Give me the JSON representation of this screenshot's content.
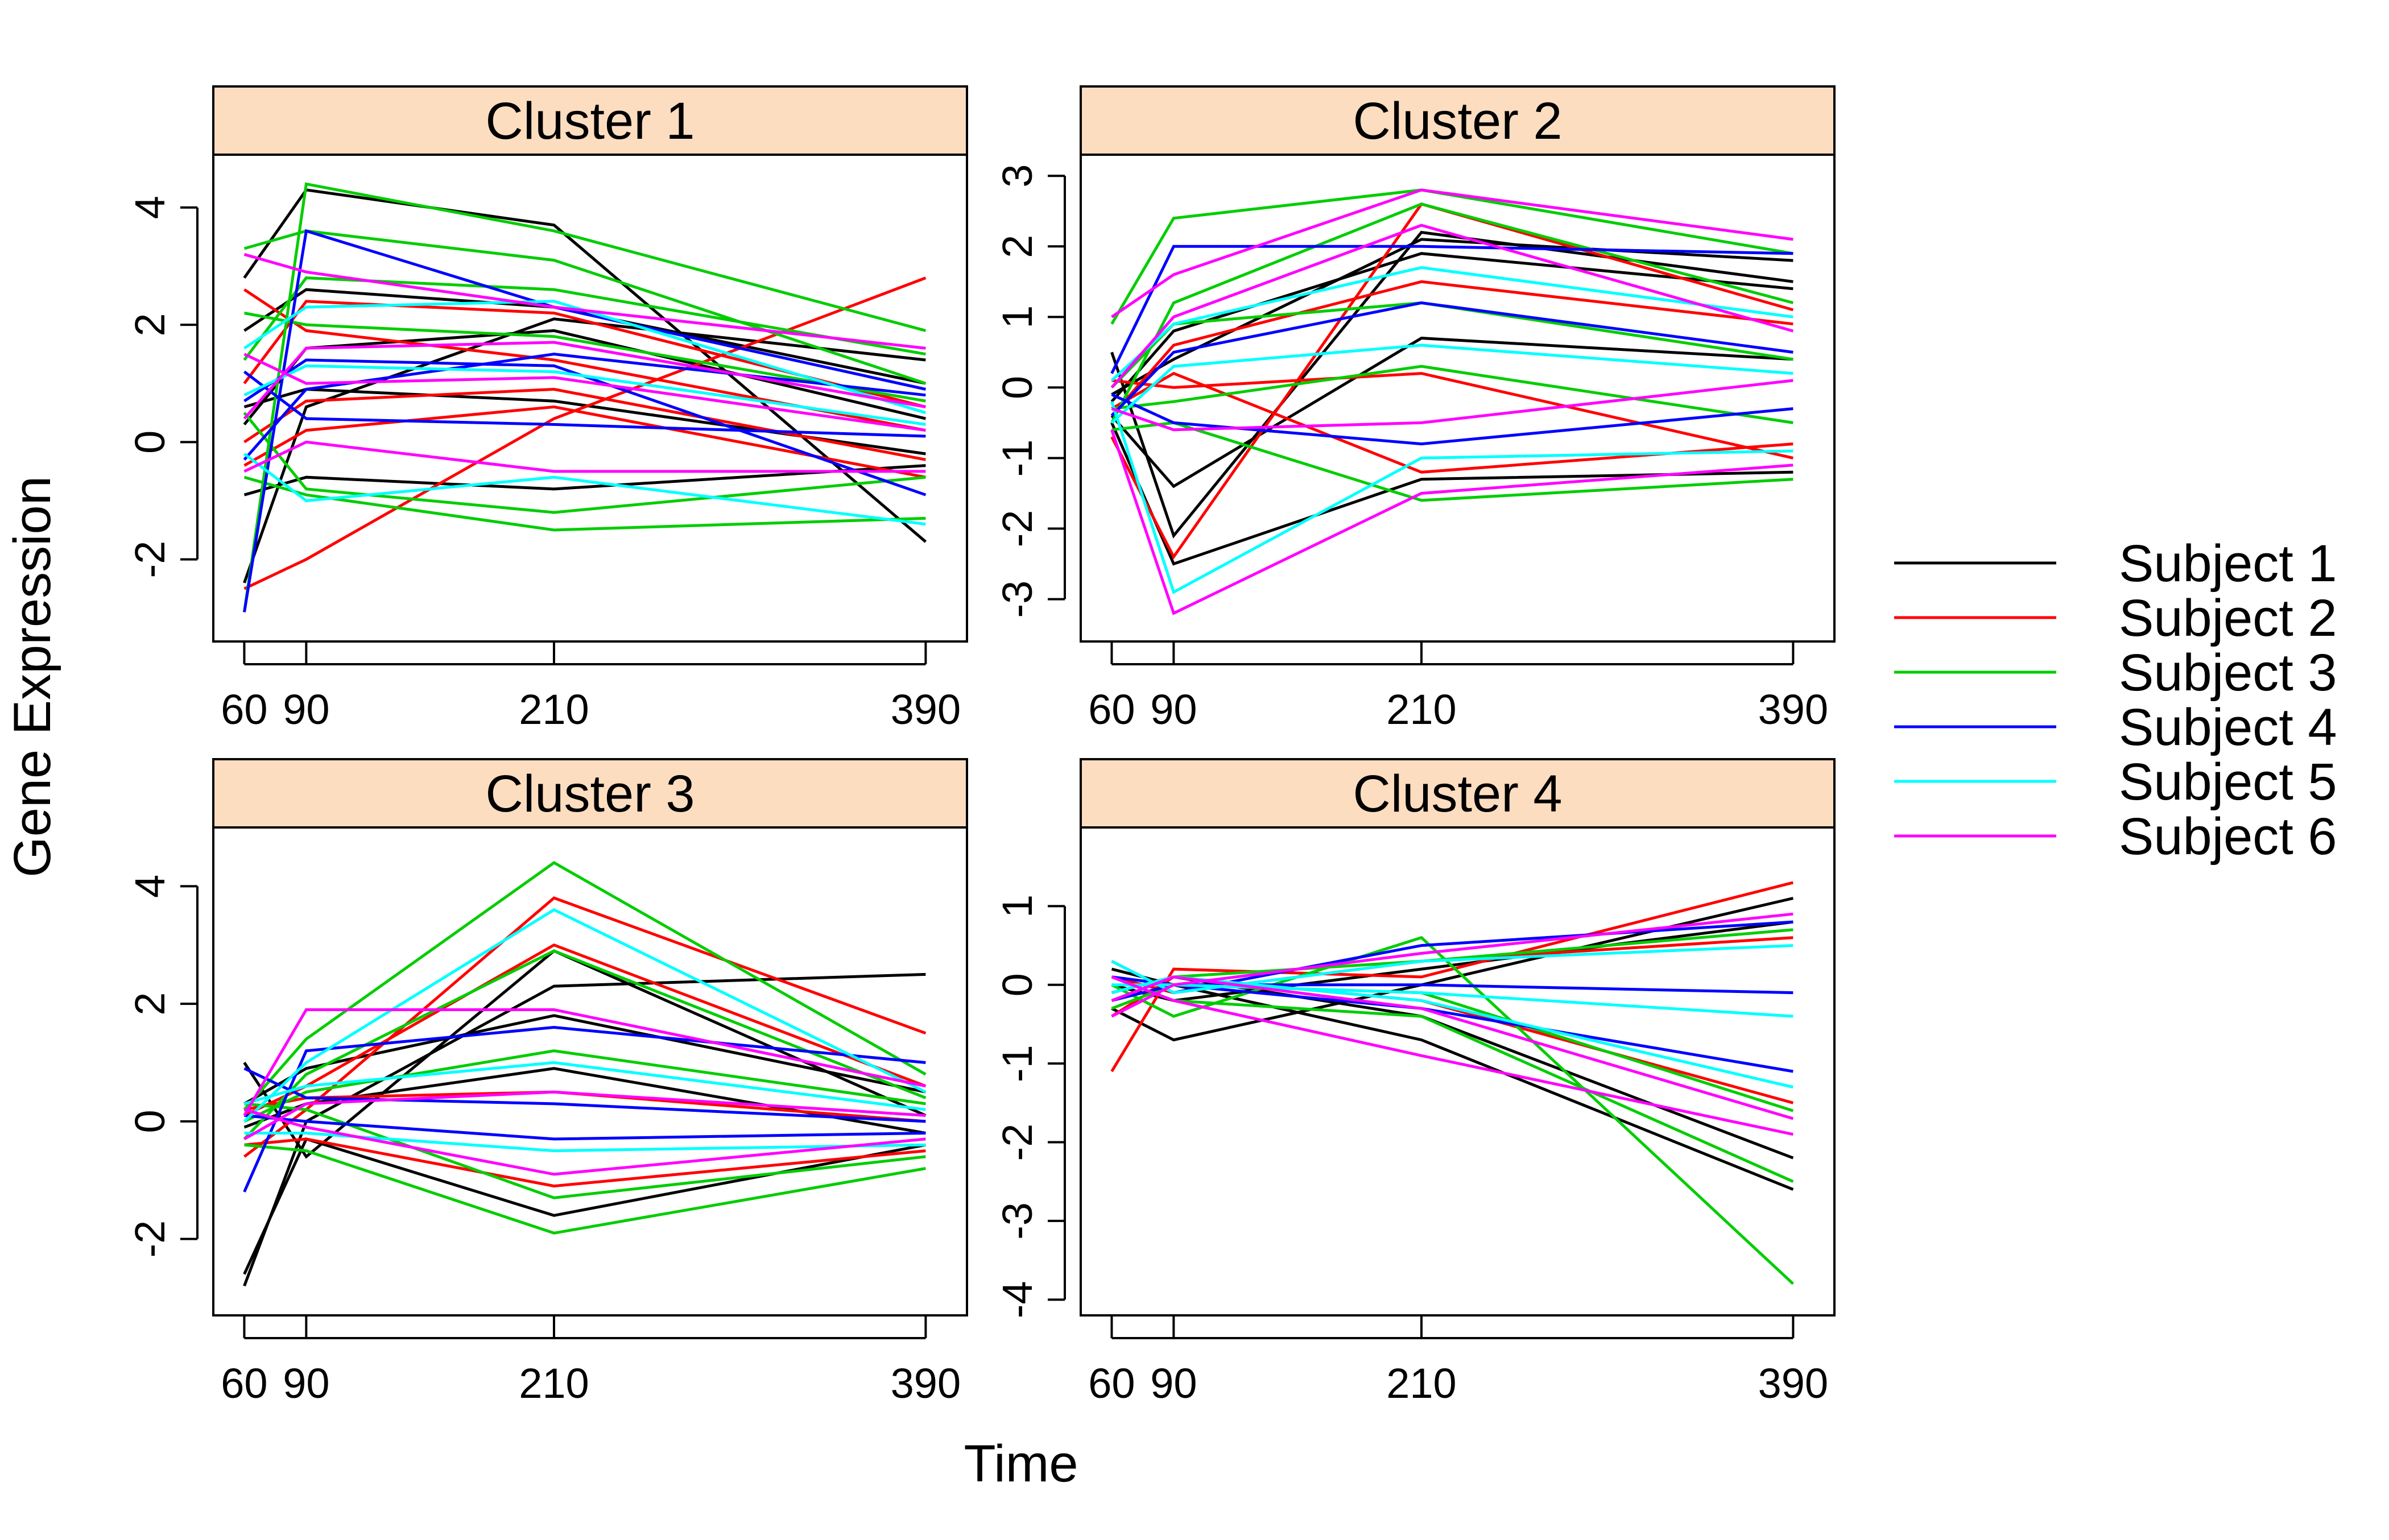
{
  "chart_data": {
    "type": "line",
    "xlabel": "Time",
    "ylabel": "Gene Expression",
    "x": [
      60,
      90,
      210,
      390
    ],
    "x_tick_labels": [
      "60",
      "90",
      "210",
      "390"
    ],
    "strip_fill": "#FDDDC0",
    "legend": {
      "placement": "right",
      "entries": [
        {
          "label": "Subject 1",
          "color": "#000000"
        },
        {
          "label": "Subject 2",
          "color": "#FF0000"
        },
        {
          "label": "Subject 3",
          "color": "#00CD00"
        },
        {
          "label": "Subject 4",
          "color": "#0000FF"
        },
        {
          "label": "Subject 5",
          "color": "#00FFFF"
        },
        {
          "label": "Subject 6",
          "color": "#FF00FF"
        }
      ]
    },
    "panels": [
      {
        "title": "Cluster 1",
        "ylim": [
          -3.4,
          4.9
        ],
        "yticks": [
          -2,
          0,
          2,
          4
        ],
        "series": [
          {
            "subject": 1,
            "values": [
              2.8,
              4.3,
              3.7,
              -1.7
            ]
          },
          {
            "subject": 1,
            "values": [
              -2.4,
              0.6,
              2.1,
              1.4
            ]
          },
          {
            "subject": 1,
            "values": [
              0.3,
              1.6,
              1.9,
              0.4
            ]
          },
          {
            "subject": 1,
            "values": [
              -0.9,
              -0.6,
              -0.8,
              -0.4
            ]
          },
          {
            "subject": 1,
            "values": [
              1.9,
              2.6,
              2.3,
              1.0
            ]
          },
          {
            "subject": 1,
            "values": [
              0.6,
              0.9,
              0.7,
              -0.2
            ]
          },
          {
            "subject": 2,
            "values": [
              -2.5,
              -2.0,
              0.4,
              2.8
            ]
          },
          {
            "subject": 2,
            "values": [
              1.0,
              2.4,
              2.2,
              0.6
            ]
          },
          {
            "subject": 2,
            "values": [
              0.0,
              0.7,
              0.9,
              -0.3
            ]
          },
          {
            "subject": 2,
            "values": [
              2.6,
              1.9,
              1.4,
              0.2
            ]
          },
          {
            "subject": 2,
            "values": [
              -0.4,
              0.2,
              0.6,
              -0.6
            ]
          },
          {
            "subject": 3,
            "values": [
              -2.9,
              4.4,
              3.6,
              1.9
            ]
          },
          {
            "subject": 3,
            "values": [
              3.3,
              3.6,
              3.1,
              1.0
            ]
          },
          {
            "subject": 3,
            "values": [
              1.4,
              2.8,
              2.6,
              1.5
            ]
          },
          {
            "subject": 3,
            "values": [
              -0.6,
              -0.9,
              -1.5,
              -1.3
            ]
          },
          {
            "subject": 3,
            "values": [
              0.5,
              -0.8,
              -1.2,
              -0.6
            ]
          },
          {
            "subject": 3,
            "values": [
              2.2,
              2.0,
              1.8,
              0.7
            ]
          },
          {
            "subject": 4,
            "values": [
              -2.9,
              3.6,
              2.3,
              0.9
            ]
          },
          {
            "subject": 4,
            "values": [
              0.7,
              1.4,
              1.3,
              -0.9
            ]
          },
          {
            "subject": 4,
            "values": [
              1.2,
              0.4,
              0.3,
              0.1
            ]
          },
          {
            "subject": 4,
            "values": [
              -0.3,
              0.9,
              1.5,
              0.8
            ]
          },
          {
            "subject": 5,
            "values": [
              -0.2,
              -1.0,
              -0.6,
              -1.4
            ]
          },
          {
            "subject": 5,
            "values": [
              0.8,
              1.3,
              1.2,
              0.3
            ]
          },
          {
            "subject": 5,
            "values": [
              1.6,
              2.3,
              2.4,
              0.5
            ]
          },
          {
            "subject": 6,
            "values": [
              3.2,
              2.9,
              2.3,
              1.6
            ]
          },
          {
            "subject": 6,
            "values": [
              0.4,
              1.6,
              1.7,
              0.6
            ]
          },
          {
            "subject": 6,
            "values": [
              1.5,
              1.0,
              1.1,
              0.2
            ]
          },
          {
            "subject": 6,
            "values": [
              -0.5,
              0.0,
              -0.5,
              -0.5
            ]
          }
        ]
      },
      {
        "title": "Cluster 2",
        "ylim": [
          -3.6,
          3.3
        ],
        "yticks": [
          -3,
          -2,
          -1,
          0,
          1,
          2,
          3
        ],
        "series": [
          {
            "subject": 1,
            "values": [
              0.5,
              -2.1,
              2.2,
              1.5
            ]
          },
          {
            "subject": 1,
            "values": [
              -0.4,
              -1.4,
              0.7,
              0.4
            ]
          },
          {
            "subject": 1,
            "values": [
              -0.2,
              0.8,
              1.9,
              1.4
            ]
          },
          {
            "subject": 1,
            "values": [
              -0.5,
              -2.5,
              -1.3,
              -1.2
            ]
          },
          {
            "subject": 1,
            "values": [
              -0.1,
              0.4,
              2.1,
              1.8
            ]
          },
          {
            "subject": 2,
            "values": [
              -0.7,
              -2.4,
              2.6,
              1.1
            ]
          },
          {
            "subject": 2,
            "values": [
              -0.3,
              0.2,
              -1.2,
              -0.8
            ]
          },
          {
            "subject": 2,
            "values": [
              -0.4,
              0.6,
              1.5,
              0.9
            ]
          },
          {
            "subject": 2,
            "values": [
              0.1,
              0.0,
              0.2,
              -1.0
            ]
          },
          {
            "subject": 3,
            "values": [
              0.9,
              2.4,
              2.8,
              1.9
            ]
          },
          {
            "subject": 3,
            "values": [
              -0.5,
              1.2,
              2.6,
              1.2
            ]
          },
          {
            "subject": 3,
            "values": [
              -0.6,
              -0.5,
              -1.6,
              -1.3
            ]
          },
          {
            "subject": 3,
            "values": [
              0.0,
              0.9,
              1.2,
              0.4
            ]
          },
          {
            "subject": 3,
            "values": [
              -0.3,
              -0.2,
              0.3,
              -0.5
            ]
          },
          {
            "subject": 4,
            "values": [
              0.2,
              2.0,
              2.0,
              1.9
            ]
          },
          {
            "subject": 4,
            "values": [
              -0.1,
              -0.5,
              -0.8,
              -0.3
            ]
          },
          {
            "subject": 4,
            "values": [
              -0.4,
              0.5,
              1.2,
              0.5
            ]
          },
          {
            "subject": 5,
            "values": [
              -0.2,
              -2.9,
              -1.0,
              -0.9
            ]
          },
          {
            "subject": 5,
            "values": [
              0.1,
              0.9,
              1.7,
              1.0
            ]
          },
          {
            "subject": 5,
            "values": [
              -0.5,
              0.3,
              0.6,
              0.2
            ]
          },
          {
            "subject": 6,
            "values": [
              1.0,
              1.6,
              2.8,
              2.1
            ]
          },
          {
            "subject": 6,
            "values": [
              -0.6,
              -3.2,
              -1.5,
              -1.1
            ]
          },
          {
            "subject": 6,
            "values": [
              0.0,
              1.0,
              2.3,
              0.8
            ]
          },
          {
            "subject": 6,
            "values": [
              -0.3,
              -0.6,
              -0.5,
              0.1
            ]
          }
        ]
      },
      {
        "title": "Cluster 3",
        "ylim": [
          -3.3,
          5.0
        ],
        "yticks": [
          -2,
          0,
          2,
          4
        ],
        "series": [
          {
            "subject": 1,
            "values": [
              -2.8,
              0.0,
              2.3,
              2.5
            ]
          },
          {
            "subject": 1,
            "values": [
              1.0,
              -0.6,
              2.9,
              0.1
            ]
          },
          {
            "subject": 1,
            "values": [
              -2.6,
              -0.3,
              -1.6,
              -0.4
            ]
          },
          {
            "subject": 1,
            "values": [
              0.3,
              0.9,
              1.8,
              0.5
            ]
          },
          {
            "subject": 1,
            "values": [
              -0.1,
              0.3,
              0.9,
              -0.2
            ]
          },
          {
            "subject": 2,
            "values": [
              -0.6,
              0.2,
              3.8,
              1.5
            ]
          },
          {
            "subject": 2,
            "values": [
              0.1,
              0.6,
              3.0,
              0.6
            ]
          },
          {
            "subject": 2,
            "values": [
              -0.4,
              -0.3,
              -1.1,
              -0.5
            ]
          },
          {
            "subject": 2,
            "values": [
              0.2,
              0.4,
              0.5,
              0.0
            ]
          },
          {
            "subject": 3,
            "values": [
              0.2,
              1.4,
              4.4,
              0.8
            ]
          },
          {
            "subject": 3,
            "values": [
              -0.3,
              0.8,
              2.9,
              0.4
            ]
          },
          {
            "subject": 3,
            "values": [
              -0.4,
              -0.5,
              -1.9,
              -0.8
            ]
          },
          {
            "subject": 3,
            "values": [
              0.0,
              0.5,
              1.2,
              0.3
            ]
          },
          {
            "subject": 3,
            "values": [
              0.3,
              0.2,
              -1.3,
              -0.6
            ]
          },
          {
            "subject": 4,
            "values": [
              -1.2,
              1.2,
              1.6,
              1.0
            ]
          },
          {
            "subject": 4,
            "values": [
              0.9,
              0.4,
              0.3,
              0.0
            ]
          },
          {
            "subject": 4,
            "values": [
              0.1,
              0.0,
              -0.3,
              -0.2
            ]
          },
          {
            "subject": 5,
            "values": [
              0.0,
              1.0,
              3.6,
              0.5
            ]
          },
          {
            "subject": 5,
            "values": [
              -0.2,
              -0.2,
              -0.5,
              -0.4
            ]
          },
          {
            "subject": 5,
            "values": [
              0.3,
              0.6,
              1.0,
              0.2
            ]
          },
          {
            "subject": 6,
            "values": [
              0.1,
              1.9,
              1.9,
              0.6
            ]
          },
          {
            "subject": 6,
            "values": [
              -0.3,
              0.3,
              0.5,
              0.1
            ]
          },
          {
            "subject": 6,
            "values": [
              0.2,
              -0.1,
              -0.9,
              -0.3
            ]
          }
        ]
      },
      {
        "title": "Cluster 4",
        "ylim": [
          -4.2,
          2.0
        ],
        "yticks": [
          -4,
          -3,
          -2,
          -1,
          0,
          1
        ],
        "series": [
          {
            "subject": 1,
            "values": [
              -0.3,
              -0.7,
              0.0,
              1.1
            ]
          },
          {
            "subject": 1,
            "values": [
              0.2,
              0.0,
              -0.7,
              -2.6
            ]
          },
          {
            "subject": 1,
            "values": [
              0.0,
              -0.2,
              0.2,
              0.8
            ]
          },
          {
            "subject": 1,
            "values": [
              -0.1,
              0.1,
              -0.4,
              -2.2
            ]
          },
          {
            "subject": 2,
            "values": [
              -1.1,
              0.2,
              0.1,
              1.3
            ]
          },
          {
            "subject": 2,
            "values": [
              -0.4,
              0.1,
              -0.2,
              -1.5
            ]
          },
          {
            "subject": 2,
            "values": [
              0.1,
              -0.1,
              0.3,
              0.6
            ]
          },
          {
            "subject": 3,
            "values": [
              0.0,
              -0.4,
              0.6,
              -3.8
            ]
          },
          {
            "subject": 3,
            "values": [
              -0.2,
              0.1,
              0.3,
              0.7
            ]
          },
          {
            "subject": 3,
            "values": [
              0.1,
              -0.2,
              -0.4,
              -2.5
            ]
          },
          {
            "subject": 3,
            "values": [
              -0.3,
              0.0,
              -0.1,
              -1.6
            ]
          },
          {
            "subject": 4,
            "values": [
              0.3,
              -0.1,
              0.5,
              0.8
            ]
          },
          {
            "subject": 4,
            "values": [
              -0.2,
              0.0,
              0.0,
              -0.1
            ]
          },
          {
            "subject": 4,
            "values": [
              0.1,
              0.0,
              -0.3,
              -1.1
            ]
          },
          {
            "subject": 5,
            "values": [
              0.3,
              -0.1,
              0.3,
              0.5
            ]
          },
          {
            "subject": 5,
            "values": [
              0.0,
              0.0,
              -0.1,
              -0.4
            ]
          },
          {
            "subject": 5,
            "values": [
              -0.1,
              0.1,
              -0.2,
              -1.3
            ]
          },
          {
            "subject": 6,
            "values": [
              -0.4,
              0.0,
              0.4,
              0.9
            ]
          },
          {
            "subject": 6,
            "values": [
              0.1,
              -0.2,
              -0.9,
              -1.9
            ]
          },
          {
            "subject": 6,
            "values": [
              -0.2,
              0.1,
              -0.3,
              -1.7
            ]
          }
        ]
      }
    ]
  }
}
